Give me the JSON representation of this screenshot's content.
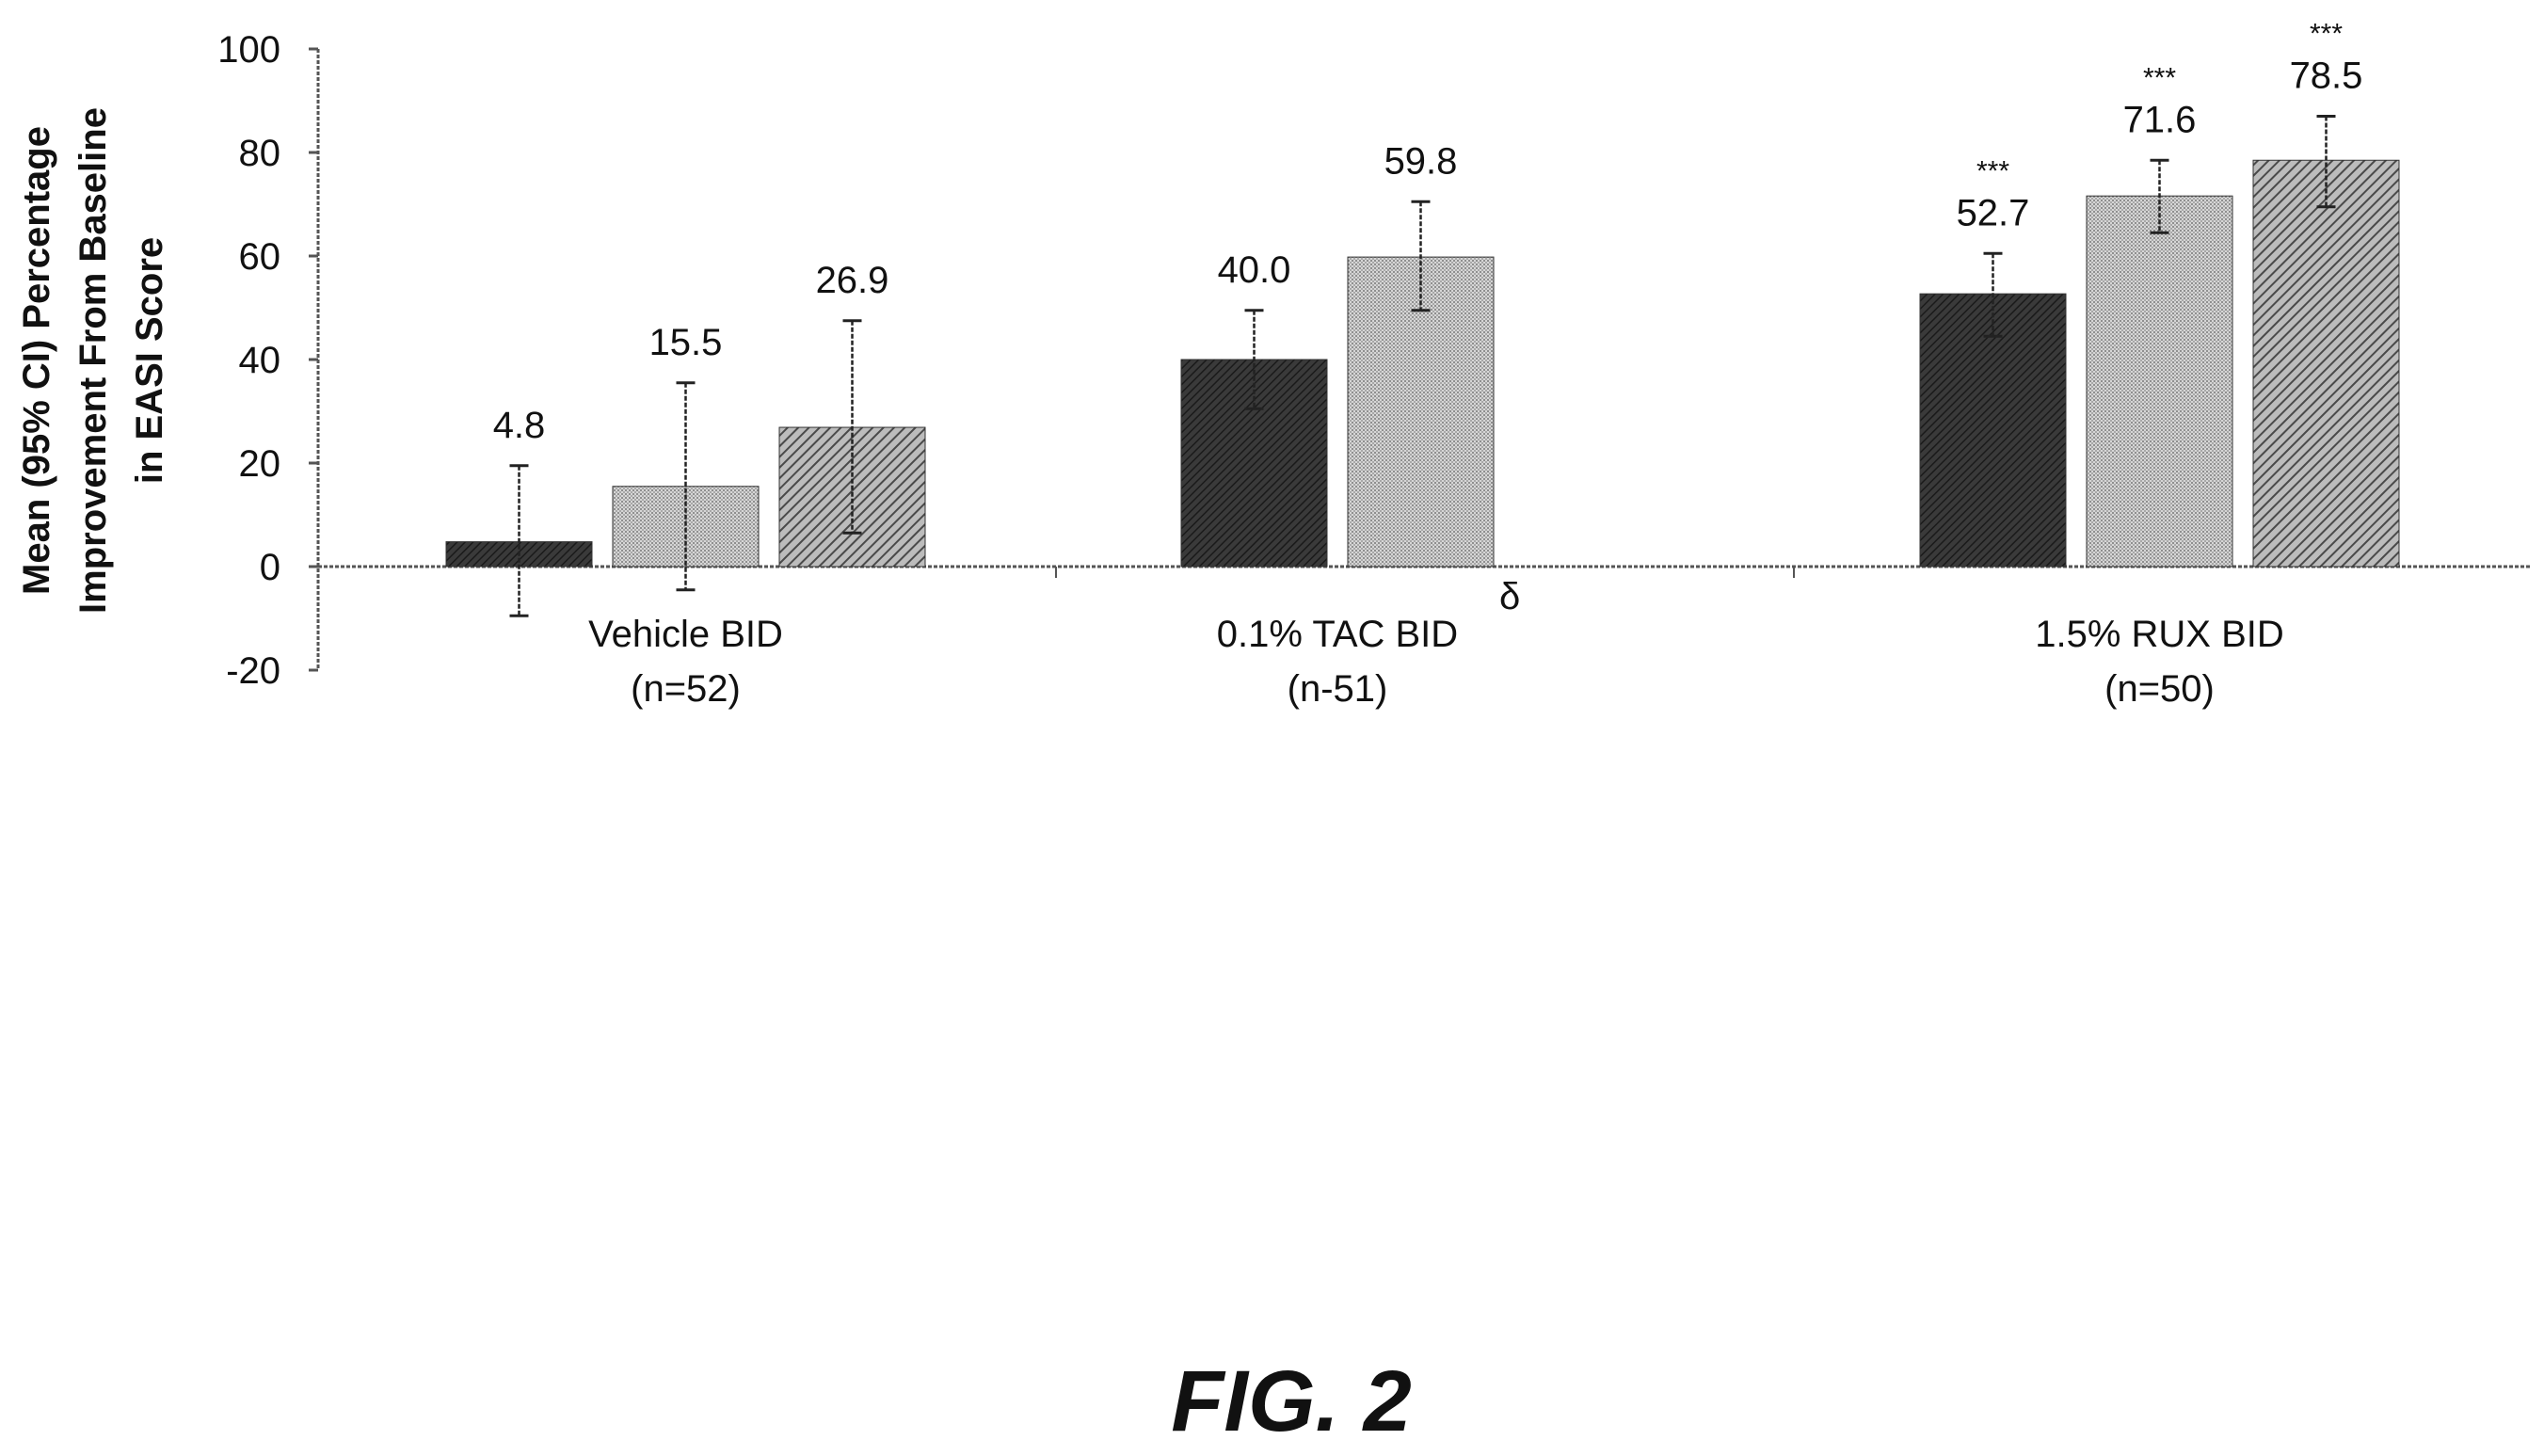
{
  "chart_data": {
    "type": "bar",
    "ylabel_lines": [
      "Mean (95% CI) Percentage",
      "Improvement From Baseline",
      "in EASI Score"
    ],
    "ylim": [
      -20,
      100
    ],
    "yticks": [
      -20,
      0,
      20,
      40,
      60,
      80,
      100
    ],
    "grid": false,
    "groups": [
      {
        "label_line1": "Vehicle BID",
        "label_sup": "",
        "label_line2": "(n=52)",
        "bars": [
          {
            "value": 4.8,
            "label": "4.8",
            "ci": [
              -9.5,
              19.5
            ],
            "sig": "",
            "pattern": "dark"
          },
          {
            "value": 15.5,
            "label": "15.5",
            "ci": [
              -4.5,
              35.5
            ],
            "sig": "",
            "pattern": "light"
          },
          {
            "value": 26.9,
            "label": "26.9",
            "ci": [
              6.5,
              47.5
            ],
            "sig": "",
            "pattern": "hatch"
          }
        ]
      },
      {
        "label_line1": "0.1% TAC BID",
        "label_sup": "δ",
        "label_line2": "(n-51)",
        "bars": [
          {
            "value": 40.0,
            "label": "40.0",
            "ci": [
              30.5,
              49.5
            ],
            "sig": "",
            "pattern": "dark"
          },
          {
            "value": 59.8,
            "label": "59.8",
            "ci": [
              49.5,
              70.5
            ],
            "sig": "",
            "pattern": "light"
          }
        ]
      },
      {
        "label_line1": "1.5% RUX BID",
        "label_sup": "",
        "label_line2": "(n=50)",
        "bars": [
          {
            "value": 52.7,
            "label": "52.7",
            "ci": [
              44.5,
              60.5
            ],
            "sig": "***",
            "pattern": "dark"
          },
          {
            "value": 71.6,
            "label": "71.6",
            "ci": [
              64.5,
              78.5
            ],
            "sig": "***",
            "pattern": "light"
          },
          {
            "value": 78.5,
            "label": "78.5",
            "ci": [
              69.5,
              87.0
            ],
            "sig": "***",
            "pattern": "hatch"
          }
        ]
      }
    ]
  },
  "figure_label": "FIG. 2",
  "colors": {
    "dark_fill": "#2b2b2b",
    "light_fill": "#bdbdbd",
    "hatch_fill": "#8a8a8a",
    "axis": "#555555",
    "text": "#111111"
  }
}
